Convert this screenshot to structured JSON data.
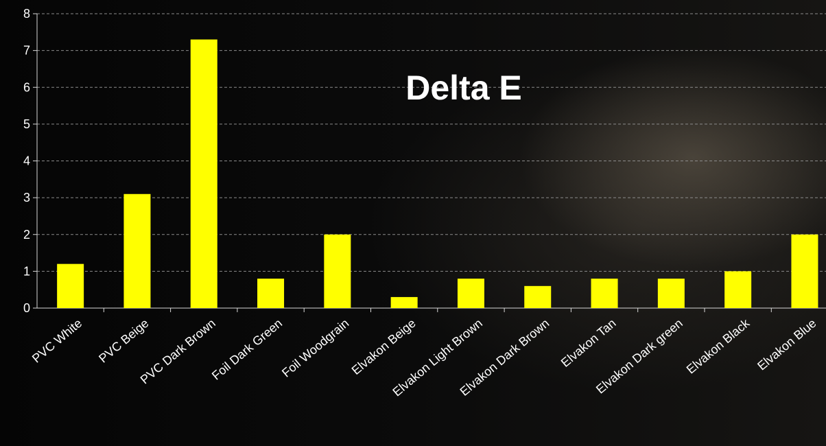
{
  "chart_data": {
    "type": "bar",
    "title": "Delta E",
    "categories": [
      "PVC White",
      "PVC Beige",
      "PVC Dark Brown",
      "Foil Dark Green",
      "Foil Woodgrain",
      "Elvakon Beige",
      "Elvakon Light Brown",
      "Elvakon Dark Brown",
      "Elvakon Tan",
      "Elvakon Dark green",
      "Elvakon Black",
      "Elvakon Blue"
    ],
    "values": [
      1.2,
      3.1,
      7.3,
      0.8,
      2.0,
      0.3,
      0.8,
      0.6,
      0.8,
      0.8,
      1.0,
      2.0
    ],
    "ylim": [
      0,
      8
    ],
    "yticks": [
      "0",
      "1",
      "2",
      "3",
      "4",
      "5",
      "6",
      "7",
      "8"
    ],
    "grid": true,
    "legend": "none",
    "colors": {
      "bar": "#FFFF00",
      "axis": "#D9D9D9",
      "grid": "#8C8C8C",
      "text": "#FFFFFF"
    }
  }
}
